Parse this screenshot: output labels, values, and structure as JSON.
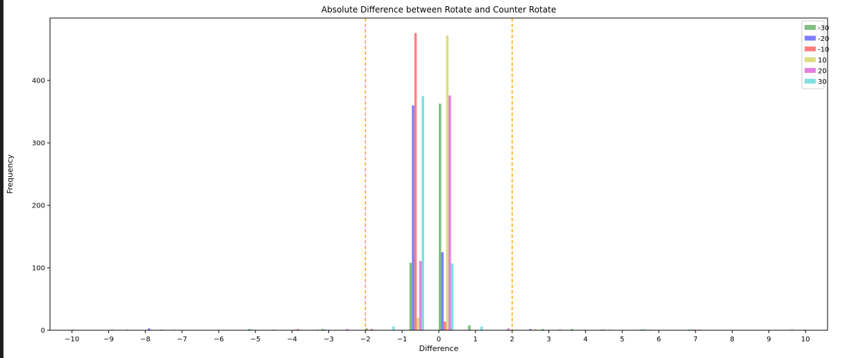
{
  "chart_data": {
    "type": "bar",
    "title": "Absolute Difference between Rotate and Counter Rotate",
    "xlabel": "Difference",
    "ylabel": "Frequency",
    "xlim": [
      -10.6,
      10.6
    ],
    "ylim": [
      0,
      500
    ],
    "xticks": [
      -10,
      -9,
      -8,
      -7,
      -6,
      -5,
      -4,
      -3,
      -2,
      -1,
      0,
      1,
      2,
      3,
      4,
      5,
      6,
      7,
      8,
      9,
      10
    ],
    "xtick_labels": [
      "−10",
      "−9",
      "−8",
      "−7",
      "−6",
      "−5",
      "−4",
      "−3",
      "−2",
      "−1",
      "0",
      "1",
      "2",
      "3",
      "4",
      "5",
      "6",
      "7",
      "8",
      "9",
      "10"
    ],
    "yticks": [
      0,
      100,
      200,
      300,
      400
    ],
    "ytick_labels": [
      "0",
      "100",
      "200",
      "300",
      "400"
    ],
    "bin_edges": [
      -10,
      -9.6,
      -9.2,
      -8.8,
      -8.4,
      -8,
      -7.6,
      -7.2,
      -6.8,
      -6.4,
      -6,
      -5.6,
      -5.2,
      -4.8,
      -4.4,
      -4,
      -3.6,
      -3.2,
      -2.8,
      -2.4,
      -2,
      -1.6,
      -1.2,
      -0.8,
      -0.4,
      0,
      0.4,
      0.8,
      1.2,
      1.6,
      2,
      2.4,
      2.8,
      3.2,
      3.6,
      4,
      4.4,
      4.8,
      5.2,
      5.6,
      6,
      6.4,
      6.8,
      7.2,
      7.6,
      8,
      8.4,
      8.8,
      9.2,
      9.6,
      10
    ],
    "vlines": [
      -2,
      2
    ],
    "vline_color": "#ffa500",
    "legend_position": "upper right",
    "series": [
      {
        "name": "-30",
        "color": "#008000",
        "values": [
          1,
          0,
          0,
          0,
          0,
          0,
          1,
          0,
          0,
          0,
          0,
          0,
          2,
          0,
          0,
          0,
          0,
          2,
          0,
          0,
          3,
          0,
          0,
          108,
          0,
          363,
          0,
          8,
          0,
          0,
          0,
          0,
          2,
          0,
          2,
          0,
          1,
          0,
          0,
          1,
          0,
          0,
          1,
          0,
          0,
          0,
          0,
          0,
          0,
          1
        ]
      },
      {
        "name": "-20",
        "color": "#0000ff",
        "values": [
          0,
          0,
          0,
          0,
          0,
          3,
          0,
          0,
          0,
          0,
          0,
          0,
          1,
          0,
          0,
          1,
          0,
          1,
          0,
          0,
          0,
          0,
          0,
          360,
          0,
          125,
          0,
          0,
          0,
          0,
          0,
          2,
          0,
          1,
          0,
          0,
          1,
          0,
          0,
          0,
          0,
          0,
          1,
          0,
          0,
          0,
          0,
          0,
          0,
          0
        ]
      },
      {
        "name": "-10",
        "color": "#ff0000",
        "values": [
          0,
          0,
          0,
          0,
          0,
          0,
          0,
          0,
          0,
          0,
          0,
          0,
          0,
          0,
          0,
          2,
          0,
          0,
          0,
          0,
          2,
          0,
          0,
          476,
          0,
          14,
          0,
          0,
          0,
          0,
          0,
          0,
          0,
          0,
          0,
          0,
          0,
          0,
          0,
          1,
          0,
          0,
          1,
          0,
          0,
          0,
          0,
          0,
          0,
          0
        ]
      },
      {
        "name": "10",
        "color": "#bbbb00",
        "values": [
          0,
          0,
          0,
          0,
          0,
          0,
          0,
          0,
          0,
          0,
          0,
          0,
          0,
          0,
          0,
          0,
          0,
          0,
          0,
          0,
          0,
          0,
          0,
          20,
          0,
          472,
          0,
          0,
          0,
          0,
          0,
          2,
          0,
          0,
          0,
          0,
          1,
          0,
          0,
          0,
          0,
          0,
          0,
          0,
          0,
          0,
          0,
          0,
          0,
          0
        ]
      },
      {
        "name": "20",
        "color": "#cc00cc",
        "values": [
          0,
          0,
          1,
          1,
          0,
          0,
          0,
          0,
          0,
          0,
          0,
          0,
          0,
          1,
          0,
          0,
          1,
          0,
          2,
          0,
          0,
          0,
          0,
          111,
          0,
          376,
          0,
          0,
          0,
          3,
          0,
          0,
          0,
          0,
          0,
          0,
          0,
          0,
          1,
          0,
          0,
          0,
          1,
          0,
          0,
          0,
          0,
          0,
          0,
          0
        ]
      },
      {
        "name": "30",
        "color": "#00bfbf",
        "values": [
          0,
          0,
          0,
          0,
          0,
          0,
          1,
          0,
          0,
          0,
          0,
          0,
          0,
          0,
          0,
          0,
          0,
          0,
          0,
          0,
          0,
          6,
          0,
          375,
          0,
          107,
          0,
          6,
          0,
          0,
          0,
          0,
          0,
          0,
          1,
          0,
          0,
          0,
          2,
          0,
          0,
          0,
          0,
          0,
          0,
          0,
          0,
          0,
          0,
          1
        ]
      }
    ]
  }
}
